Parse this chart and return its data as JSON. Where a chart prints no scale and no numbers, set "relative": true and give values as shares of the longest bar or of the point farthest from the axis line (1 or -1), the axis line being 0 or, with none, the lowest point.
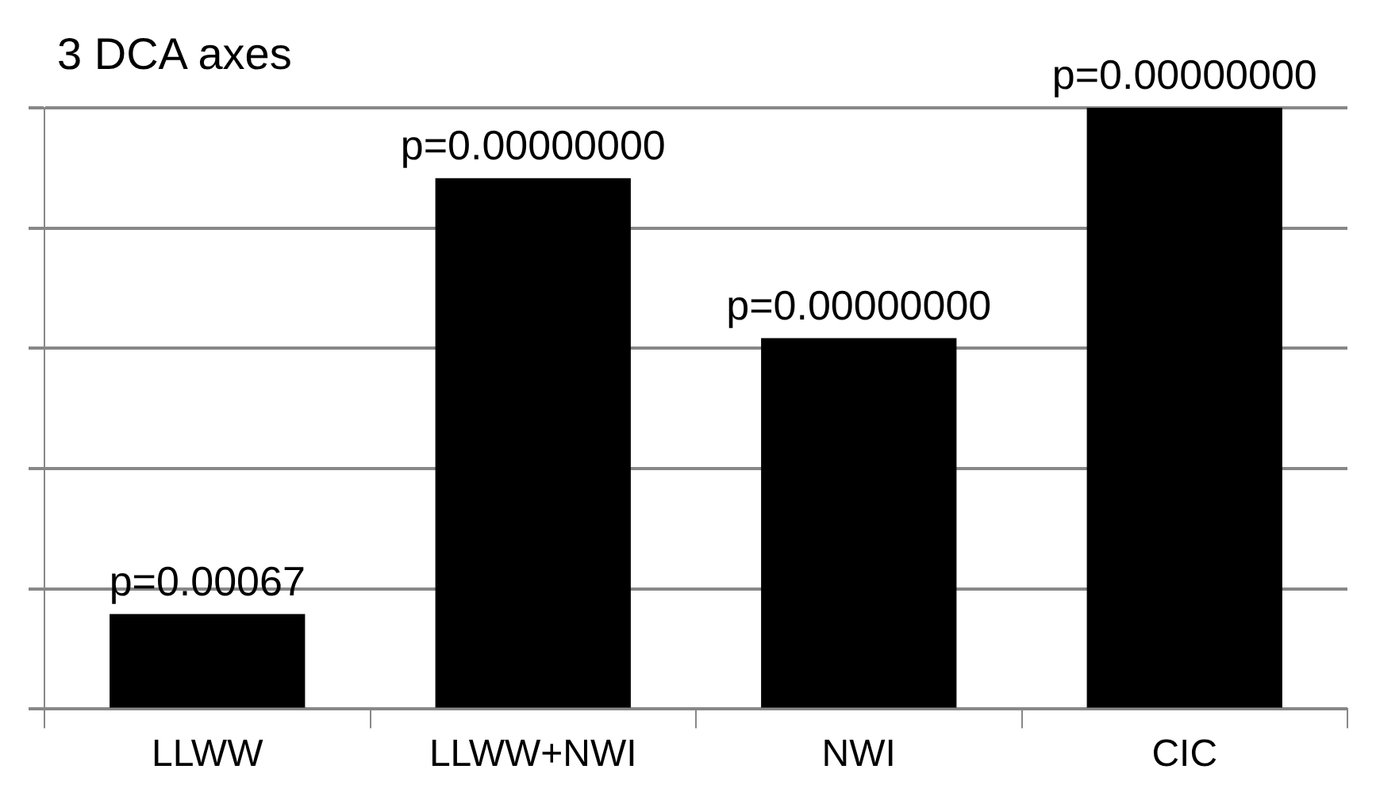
{
  "chart_data": {
    "type": "bar",
    "title": "3 DCA axes",
    "categories": [
      "LLWW",
      "LLWW+NWI",
      "NWI",
      "CIC"
    ],
    "values": [
      0.158,
      0.883,
      0.617,
      1
    ],
    "annotations": [
      {
        "text": "p=0.00067",
        "x": "LLWW",
        "y": 0.158
      },
      {
        "text": "p=0.00000000",
        "x": "LLWW+NWI",
        "y": 0.883
      },
      {
        "text": "p=0.00000000",
        "x": "NWI",
        "y": 0.617
      },
      {
        "text": "p=0.00000000",
        "x": "CIC",
        "y": 1
      }
    ],
    "color": "#000000",
    "relative": true,
    "grid": "y",
    "legend": false
  }
}
